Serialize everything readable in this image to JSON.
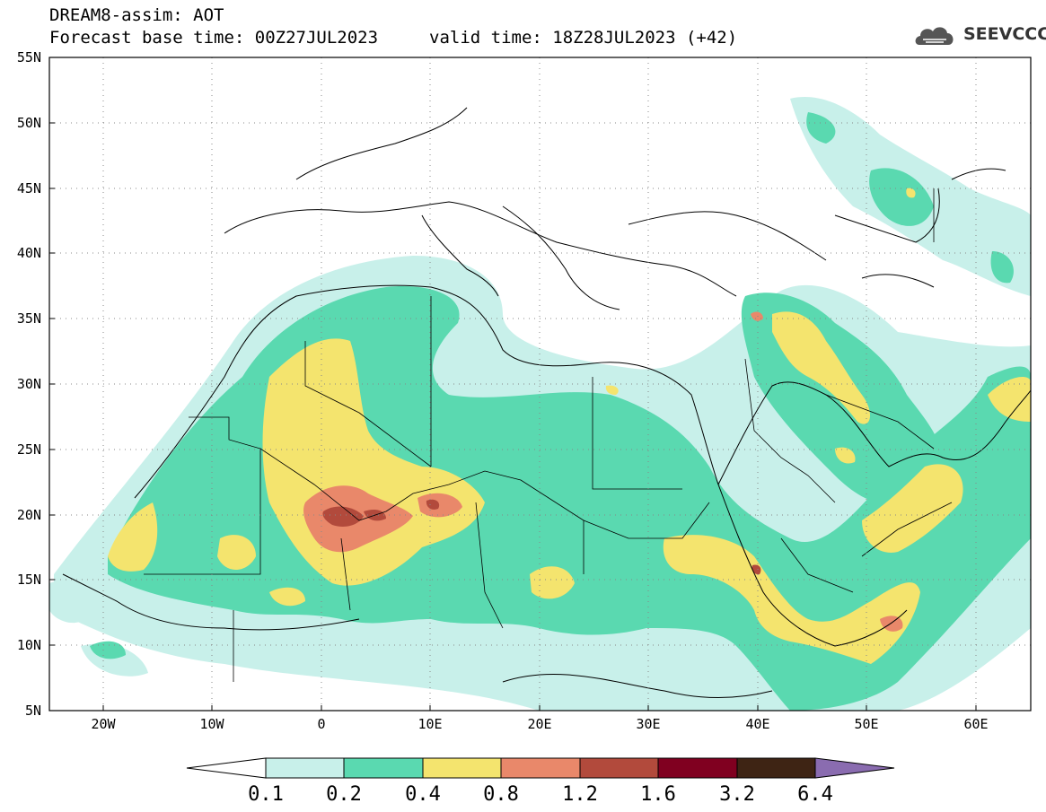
{
  "header": {
    "title": "DREAM8-assim: AOT",
    "base_time": "Forecast base time: 00Z27JUL2023",
    "valid_time": "valid time: 18Z28JUL2023 (+42)"
  },
  "logo": {
    "text": "SEEVCCC",
    "icon": "cloud-icon"
  },
  "map": {
    "lat_labels": [
      "55N",
      "50N",
      "45N",
      "40N",
      "35N",
      "30N",
      "25N",
      "20N",
      "15N",
      "10N",
      "5N"
    ],
    "lon_labels": [
      "20W",
      "10W",
      "0",
      "10E",
      "20E",
      "30E",
      "40E",
      "50E",
      "60E"
    ],
    "lat_range": [
      5,
      55
    ],
    "lon_range": [
      -25,
      65
    ],
    "grid": "dotted",
    "field": "Aerosol Optical Thickness (dust)"
  },
  "colorbar": {
    "levels": [
      "0.1",
      "0.2",
      "0.4",
      "0.8",
      "1.2",
      "1.6",
      "3.2",
      "6.4"
    ],
    "colors": [
      "#ffffff",
      "#c8f0ea",
      "#5ad9b0",
      "#f4e46e",
      "#e9886a",
      "#b24a3c",
      "#800020",
      "#3e2414",
      "#8a6cb0"
    ]
  }
}
